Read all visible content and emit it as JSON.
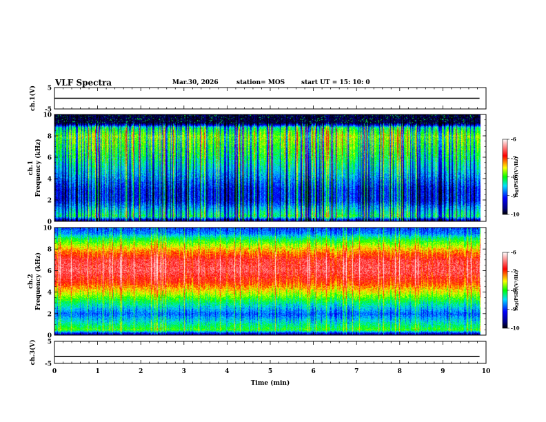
{
  "header": {
    "title": "VLF Spectra",
    "date": "Mar.30, 2026",
    "station": "station= MOS",
    "start_ut": "start  UT =   15: 10: 0"
  },
  "chart_data": [
    {
      "type": "line",
      "panel": "ch1-voltage",
      "ylabel": "ch.1(V)",
      "ylim": [
        -5,
        5
      ],
      "yticks": [
        "5",
        "-5"
      ],
      "x": [
        0,
        9.85
      ],
      "series": [
        {
          "values": [
            0,
            0
          ]
        }
      ],
      "xlim": [
        0,
        10
      ]
    },
    {
      "type": "heatmap",
      "panel": "ch1-spectrogram",
      "ylabel": "ch.1\nFrequency (kHz)",
      "ylim": [
        0,
        10
      ],
      "yticks": [
        "0",
        "2",
        "4",
        "6",
        "8",
        "10"
      ],
      "xlim": [
        0,
        9.85
      ],
      "colorbar": {
        "label": "log(PSD)(V²/Hz)",
        "range": [
          -10,
          -6
        ],
        "ticks": [
          "-6",
          "-7",
          "-8",
          "-9",
          "-10"
        ]
      },
      "profile_khz": [
        0,
        0.5,
        1,
        2,
        3,
        4,
        5,
        6,
        7,
        8,
        8.8,
        9.2,
        10
      ],
      "profile_level": [
        -10,
        -8.3,
        -8.6,
        -9.2,
        -9.2,
        -8.9,
        -8.6,
        -8.3,
        -8.1,
        -7.9,
        -8.4,
        -10,
        -10
      ]
    },
    {
      "type": "heatmap",
      "panel": "ch2-spectrogram",
      "ylabel": "ch.2\nFrequency (kHz)",
      "ylim": [
        0,
        10
      ],
      "yticks": [
        "0",
        "2",
        "4",
        "6",
        "8",
        "10"
      ],
      "xlim": [
        0,
        9.85
      ],
      "colorbar": {
        "label": "log(PSD)(V²/Hz)",
        "range": [
          -10,
          -6
        ],
        "ticks": [
          "-6",
          "-7",
          "-8",
          "-9",
          "-10"
        ]
      },
      "profile_khz": [
        0,
        0.5,
        1,
        1.5,
        2,
        3,
        4,
        5,
        6,
        7,
        8,
        9,
        9.5,
        10
      ],
      "profile_level": [
        -10,
        -8.0,
        -8.3,
        -8.6,
        -8.9,
        -8.3,
        -7.6,
        -7.0,
        -6.7,
        -6.8,
        -7.4,
        -8.2,
        -8.8,
        -9.0
      ]
    },
    {
      "type": "line",
      "panel": "ch3-voltage",
      "ylabel": "ch.3(V)",
      "ylim": [
        -5,
        5
      ],
      "yticks": [
        "5",
        "-5"
      ],
      "x": [
        0,
        9.85
      ],
      "series": [
        {
          "values": [
            -1.8,
            -1.8
          ]
        }
      ],
      "xlim": [
        0,
        10
      ]
    }
  ],
  "x_axis": {
    "label": "Time  (min)",
    "ticks": [
      "0",
      "1",
      "2",
      "3",
      "4",
      "5",
      "6",
      "7",
      "8",
      "9",
      "10"
    ],
    "range": [
      0,
      10
    ]
  },
  "colors": {
    "scale": [
      "#000080",
      "#0000ff",
      "#00ffff",
      "#00ff00",
      "#ffff00",
      "#ff0000",
      "#ffffff"
    ]
  }
}
